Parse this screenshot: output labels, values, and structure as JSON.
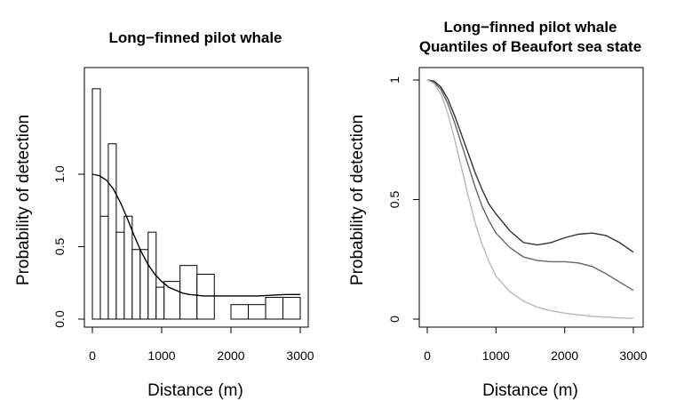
{
  "chart_data": [
    {
      "type": "bar",
      "title": "Long−finned pilot whale",
      "xlabel": "Distance (m)",
      "ylabel": "Probability of detection",
      "xlim": [
        0,
        3000
      ],
      "ylim": [
        0,
        1.6
      ],
      "xticks": [
        "0",
        "1000",
        "2000",
        "3000"
      ],
      "yticks": [
        "0.0",
        "0.5",
        "1.0"
      ],
      "ytick_values": [
        0.0,
        0.5,
        1.0
      ],
      "xtick_values": [
        0,
        1000,
        2000,
        3000
      ],
      "bins": [
        {
          "x0": 0,
          "x1": 115,
          "value": 1.59
        },
        {
          "x0": 115,
          "x1": 230,
          "value": 0.71
        },
        {
          "x0": 230,
          "x1": 345,
          "value": 1.21
        },
        {
          "x0": 345,
          "x1": 460,
          "value": 0.6
        },
        {
          "x0": 460,
          "x1": 575,
          "value": 0.71
        },
        {
          "x0": 575,
          "x1": 690,
          "value": 0.48
        },
        {
          "x0": 690,
          "x1": 805,
          "value": 0.48
        },
        {
          "x0": 805,
          "x1": 920,
          "value": 0.6
        },
        {
          "x0": 920,
          "x1": 1035,
          "value": 0.22
        },
        {
          "x0": 1035,
          "x1": 1265,
          "value": 0.26
        },
        {
          "x0": 1265,
          "x1": 1510,
          "value": 0.37
        },
        {
          "x0": 1510,
          "x1": 1760,
          "value": 0.31
        },
        {
          "x0": 2000,
          "x1": 2250,
          "value": 0.1
        },
        {
          "x0": 2250,
          "x1": 2500,
          "value": 0.1
        },
        {
          "x0": 2500,
          "x1": 2750,
          "value": 0.15
        },
        {
          "x0": 2750,
          "x1": 3000,
          "value": 0.15
        }
      ],
      "fitted_curve": {
        "x": [
          0,
          100,
          200,
          300,
          400,
          500,
          600,
          700,
          800,
          900,
          1000,
          1100,
          1200,
          1300,
          1400,
          1500,
          1600,
          1700,
          1800,
          2000,
          2200,
          2400,
          2600,
          2800,
          3000
        ],
        "y": [
          1.0,
          0.99,
          0.96,
          0.9,
          0.81,
          0.7,
          0.58,
          0.47,
          0.38,
          0.31,
          0.26,
          0.22,
          0.2,
          0.18,
          0.17,
          0.165,
          0.16,
          0.16,
          0.16,
          0.16,
          0.16,
          0.16,
          0.165,
          0.17,
          0.17
        ]
      }
    },
    {
      "type": "line",
      "title": "Long−finned pilot whale",
      "subtitle": "Quantiles of Beaufort sea state",
      "xlabel": "Distance (m)",
      "ylabel": "Probability of detection",
      "xlim": [
        0,
        3000
      ],
      "ylim": [
        0,
        1.0
      ],
      "xticks": [
        "0",
        "1000",
        "2000",
        "3000"
      ],
      "yticks": [
        "0",
        "0.5",
        "1"
      ],
      "ytick_values": [
        0,
        0.5,
        1
      ],
      "xtick_values": [
        0,
        1000,
        2000,
        3000
      ],
      "x": [
        0,
        100,
        200,
        300,
        400,
        500,
        600,
        700,
        800,
        900,
        1000,
        1200,
        1400,
        1600,
        1800,
        2000,
        2200,
        2400,
        2600,
        2800,
        3000
      ],
      "series": [
        {
          "color": "#333333",
          "values": [
            1.0,
            0.995,
            0.97,
            0.92,
            0.85,
            0.77,
            0.69,
            0.61,
            0.54,
            0.48,
            0.44,
            0.37,
            0.32,
            0.31,
            0.32,
            0.34,
            0.355,
            0.36,
            0.35,
            0.32,
            0.28
          ]
        },
        {
          "color": "#666666",
          "values": [
            1.0,
            0.99,
            0.96,
            0.9,
            0.82,
            0.73,
            0.64,
            0.55,
            0.47,
            0.41,
            0.36,
            0.3,
            0.26,
            0.245,
            0.24,
            0.24,
            0.235,
            0.22,
            0.19,
            0.155,
            0.12
          ]
        },
        {
          "color": "#b8b8b8",
          "values": [
            1.0,
            0.985,
            0.94,
            0.86,
            0.75,
            0.63,
            0.51,
            0.4,
            0.31,
            0.24,
            0.18,
            0.115,
            0.075,
            0.05,
            0.035,
            0.025,
            0.018,
            0.012,
            0.008,
            0.005,
            0.003
          ]
        }
      ]
    }
  ]
}
